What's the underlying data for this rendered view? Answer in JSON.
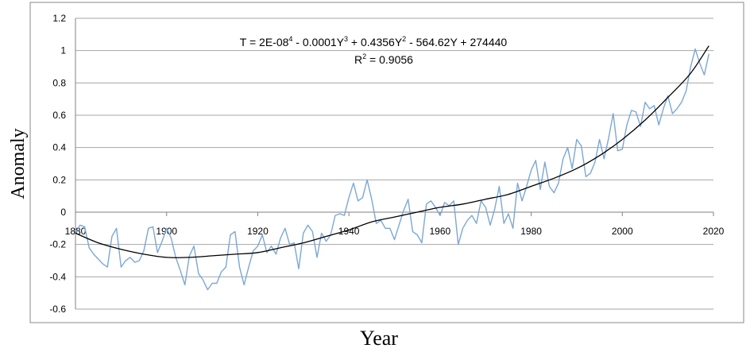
{
  "chart_data": {
    "type": "line",
    "title": "",
    "xlabel": "Year",
    "ylabel": "Anomaly",
    "xlim": [
      1880,
      2020
    ],
    "ylim": [
      -0.6,
      1.2
    ],
    "x_ticks": [
      1880,
      1900,
      1920,
      1940,
      1960,
      1980,
      2000,
      2020
    ],
    "x_tick_labels": [
      "1880",
      "1900",
      "1920",
      "1940",
      "1960",
      "1980",
      "2000",
      "2020"
    ],
    "y_ticks": [
      -0.6,
      -0.4,
      -0.2,
      0,
      0.2,
      0.4,
      0.6,
      0.8,
      1,
      1.2
    ],
    "y_tick_labels": [
      "-0.6",
      "-0.4",
      "-0.2",
      "0",
      "0.2",
      "0.4",
      "0.6",
      "0.8",
      "1",
      "1.2"
    ],
    "grid": "horizontal",
    "legend": "none",
    "annotation": {
      "equation": {
        "pre": "T = 2E-08",
        "sup1": "4",
        "mid1": " - 0.0001Y",
        "sup2": "3",
        "mid2": " + 0.4356Y",
        "sup3": "2",
        "post": " - 564.62Y + 274440"
      },
      "r2": {
        "pre": "R",
        "sup": "2",
        "post": " = 0.9056"
      }
    },
    "series": [
      {
        "color": "#7ba7d7",
        "x": [
          1880,
          1881,
          1882,
          1883,
          1884,
          1885,
          1886,
          1887,
          1888,
          1889,
          1890,
          1891,
          1892,
          1893,
          1894,
          1895,
          1896,
          1897,
          1898,
          1899,
          1900,
          1901,
          1902,
          1903,
          1904,
          1905,
          1906,
          1907,
          1908,
          1909,
          1910,
          1911,
          1912,
          1913,
          1914,
          1915,
          1916,
          1917,
          1918,
          1919,
          1920,
          1921,
          1922,
          1923,
          1924,
          1925,
          1926,
          1927,
          1928,
          1929,
          1930,
          1931,
          1932,
          1933,
          1934,
          1935,
          1936,
          1937,
          1938,
          1939,
          1940,
          1941,
          1942,
          1943,
          1944,
          1945,
          1946,
          1947,
          1948,
          1949,
          1950,
          1951,
          1952,
          1953,
          1954,
          1955,
          1956,
          1957,
          1958,
          1959,
          1960,
          1961,
          1962,
          1963,
          1964,
          1965,
          1966,
          1967,
          1968,
          1969,
          1970,
          1971,
          1972,
          1973,
          1974,
          1975,
          1976,
          1977,
          1978,
          1979,
          1980,
          1981,
          1982,
          1983,
          1984,
          1985,
          1986,
          1987,
          1988,
          1989,
          1990,
          1991,
          1992,
          1993,
          1994,
          1995,
          1996,
          1997,
          1998,
          1999,
          2000,
          2001,
          2002,
          2003,
          2004,
          2005,
          2006,
          2007,
          2008,
          2009,
          2010,
          2011,
          2012,
          2013,
          2014,
          2015,
          2016,
          2017,
          2018,
          2019
        ],
        "values": [
          -0.13,
          -0.08,
          -0.09,
          -0.22,
          -0.26,
          -0.29,
          -0.32,
          -0.34,
          -0.15,
          -0.1,
          -0.34,
          -0.3,
          -0.28,
          -0.31,
          -0.3,
          -0.24,
          -0.1,
          -0.09,
          -0.25,
          -0.18,
          -0.1,
          -0.16,
          -0.28,
          -0.36,
          -0.45,
          -0.27,
          -0.21,
          -0.38,
          -0.42,
          -0.48,
          -0.44,
          -0.44,
          -0.37,
          -0.34,
          -0.14,
          -0.12,
          -0.34,
          -0.45,
          -0.34,
          -0.24,
          -0.21,
          -0.14,
          -0.25,
          -0.21,
          -0.26,
          -0.16,
          -0.1,
          -0.2,
          -0.19,
          -0.35,
          -0.13,
          -0.08,
          -0.12,
          -0.28,
          -0.13,
          -0.18,
          -0.14,
          -0.02,
          -0.01,
          -0.02,
          0.09,
          0.18,
          0.07,
          0.09,
          0.2,
          0.08,
          -0.07,
          -0.05,
          -0.1,
          -0.1,
          -0.17,
          -0.08,
          0.01,
          0.08,
          -0.12,
          -0.14,
          -0.19,
          0.05,
          0.07,
          0.03,
          -0.02,
          0.06,
          0.04,
          0.07,
          -0.2,
          -0.1,
          -0.05,
          -0.02,
          -0.07,
          0.07,
          0.03,
          -0.08,
          0.02,
          0.16,
          -0.07,
          -0.01,
          -0.1,
          0.18,
          0.07,
          0.16,
          0.26,
          0.32,
          0.14,
          0.31,
          0.16,
          0.12,
          0.18,
          0.33,
          0.4,
          0.27,
          0.45,
          0.41,
          0.22,
          0.24,
          0.31,
          0.45,
          0.33,
          0.46,
          0.61,
          0.38,
          0.39,
          0.54,
          0.63,
          0.62,
          0.53,
          0.68,
          0.64,
          0.66,
          0.54,
          0.64,
          0.72,
          0.61,
          0.64,
          0.68,
          0.75,
          0.9,
          1.01,
          0.92,
          0.85,
          0.98
        ]
      }
    ],
    "trendline": {
      "color": "#000000",
      "type": "polynomial",
      "x": [
        1880,
        1885,
        1890,
        1895,
        1900,
        1905,
        1910,
        1915,
        1920,
        1925,
        1930,
        1935,
        1940,
        1945,
        1950,
        1955,
        1960,
        1965,
        1970,
        1975,
        1980,
        1985,
        1990,
        1995,
        2000,
        2005,
        2010,
        2015,
        2019
      ],
      "values": [
        -0.13,
        -0.19,
        -0.23,
        -0.26,
        -0.28,
        -0.28,
        -0.27,
        -0.26,
        -0.25,
        -0.22,
        -0.19,
        -0.15,
        -0.11,
        -0.06,
        -0.03,
        0.0,
        0.03,
        0.05,
        0.08,
        0.11,
        0.16,
        0.21,
        0.27,
        0.35,
        0.45,
        0.57,
        0.71,
        0.86,
        1.03
      ]
    }
  }
}
